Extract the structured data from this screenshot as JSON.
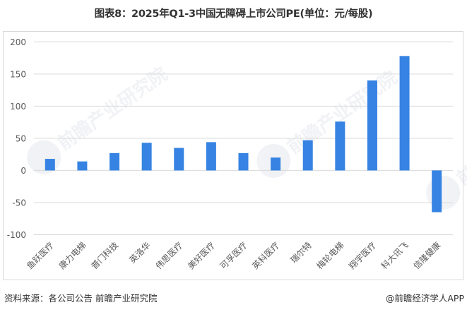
{
  "title": "图表8：2025年Q1-3中国无障碍上市公司PE(单位：元/每股)",
  "footer": {
    "source": "资料来源：各公司公告 前瞻产业研究院",
    "credit": "@前瞻经济学人APP"
  },
  "watermark": "前瞻产业研究院",
  "colors": {
    "bar": "#3683E3",
    "gridline": "#d9d9d9",
    "axis_text": "#595959"
  },
  "chart_data": {
    "type": "bar",
    "title": "图表8：2025年Q1-3中国无障碍上市公司PE(单位：元/每股)",
    "xlabel": "",
    "ylabel": "",
    "categories": [
      "鱼跃医疗",
      "康力电梯",
      "普门科技",
      "英洛华",
      "伟思医疗",
      "美好医疗",
      "可孚医疗",
      "英科医疗",
      "瑞尔特",
      "梅轮电梯",
      "翔宇医疗",
      "科大讯飞",
      "信隆健康"
    ],
    "values": [
      18,
      14,
      27,
      43,
      35,
      44,
      27,
      20,
      47,
      76,
      140,
      178,
      -65
    ],
    "ylim": [
      -100,
      200
    ],
    "yticks": [
      200,
      150,
      100,
      50,
      0,
      -50,
      -100
    ],
    "grid": true,
    "legend": "none"
  }
}
